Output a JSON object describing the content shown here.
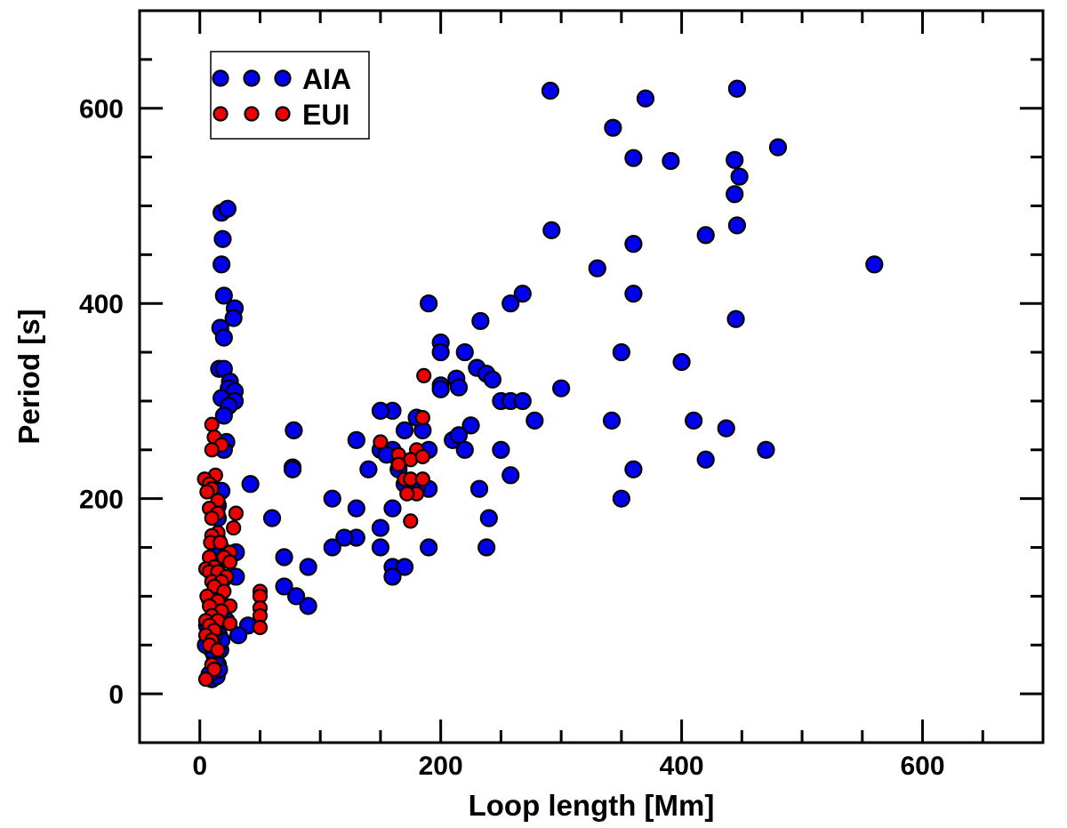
{
  "chart_data": {
    "type": "scatter",
    "title": "",
    "xlabel": "Loop length [Mm]",
    "ylabel": "Period [s]",
    "xlim": [
      -50,
      700
    ],
    "ylim": [
      -50,
      700
    ],
    "xticks": [
      0,
      200,
      400,
      600
    ],
    "yticks": [
      0,
      200,
      400,
      600
    ],
    "xtick_labels": [
      "0",
      "200",
      "400",
      "600"
    ],
    "ytick_labels": [
      "0",
      "200",
      "400",
      "600"
    ],
    "minor_tick_step": 50,
    "grid": false,
    "legend_position": "top-left",
    "series": [
      {
        "name": "AIA",
        "color": "#0000ee",
        "marker": "circle",
        "points": [
          [
            291,
            618
          ],
          [
            370,
            610
          ],
          [
            446,
            620
          ],
          [
            343,
            580
          ],
          [
            480,
            560
          ],
          [
            360,
            549
          ],
          [
            391,
            546
          ],
          [
            444,
            547
          ],
          [
            448,
            530
          ],
          [
            444,
            512
          ],
          [
            292,
            475
          ],
          [
            360,
            461
          ],
          [
            420,
            470
          ],
          [
            446,
            480
          ],
          [
            560,
            440
          ],
          [
            330,
            436
          ],
          [
            268,
            410
          ],
          [
            360,
            410
          ],
          [
            258,
            400
          ],
          [
            190,
            400
          ],
          [
            233,
            382
          ],
          [
            445,
            384
          ],
          [
            350,
            350
          ],
          [
            400,
            340
          ],
          [
            200,
            360
          ],
          [
            200,
            350
          ],
          [
            220,
            350
          ],
          [
            230,
            334
          ],
          [
            238,
            328
          ],
          [
            243,
            322
          ],
          [
            213,
            323
          ],
          [
            200,
            316
          ],
          [
            200,
            312
          ],
          [
            215,
            314
          ],
          [
            250,
            300
          ],
          [
            258,
            300
          ],
          [
            268,
            300
          ],
          [
            278,
            280
          ],
          [
            300,
            313
          ],
          [
            342,
            280
          ],
          [
            410,
            280
          ],
          [
            437,
            272
          ],
          [
            360,
            230
          ],
          [
            420,
            240
          ],
          [
            470,
            250
          ],
          [
            350,
            200
          ],
          [
            258,
            224
          ],
          [
            232,
            210
          ],
          [
            240,
            180
          ],
          [
            238,
            150
          ],
          [
            250,
            250
          ],
          [
            225,
            275
          ],
          [
            210,
            260
          ],
          [
            215,
            265
          ],
          [
            220,
            250
          ],
          [
            190,
            150
          ],
          [
            190,
            210
          ],
          [
            185,
            270
          ],
          [
            190,
            250
          ],
          [
            180,
            283
          ],
          [
            160,
            290
          ],
          [
            150,
            290
          ],
          [
            170,
            270
          ],
          [
            165,
            240
          ],
          [
            160,
            250
          ],
          [
            150,
            250
          ],
          [
            155,
            245
          ],
          [
            165,
            230
          ],
          [
            180,
            210
          ],
          [
            170,
            215
          ],
          [
            160,
            190
          ],
          [
            150,
            170
          ],
          [
            150,
            150
          ],
          [
            160,
            130
          ],
          [
            170,
            130
          ],
          [
            160,
            120
          ],
          [
            140,
            230
          ],
          [
            130,
            260
          ],
          [
            130,
            190
          ],
          [
            130,
            160
          ],
          [
            120,
            160
          ],
          [
            110,
            150
          ],
          [
            110,
            200
          ],
          [
            90,
            130
          ],
          [
            90,
            90
          ],
          [
            80,
            100
          ],
          [
            70,
            110
          ],
          [
            70,
            140
          ],
          [
            60,
            180
          ],
          [
            78,
            270
          ],
          [
            77,
            232
          ],
          [
            77,
            230
          ],
          [
            42,
            215
          ],
          [
            40,
            70
          ],
          [
            30,
            120
          ],
          [
            30,
            145
          ],
          [
            32,
            60
          ],
          [
            18,
            493
          ],
          [
            23,
            497
          ],
          [
            19,
            466
          ],
          [
            18,
            440
          ],
          [
            20,
            408
          ],
          [
            29,
            395
          ],
          [
            28,
            385
          ],
          [
            17,
            375
          ],
          [
            20,
            365
          ],
          [
            16,
            333
          ],
          [
            20,
            333
          ],
          [
            25,
            320
          ],
          [
            24,
            313
          ],
          [
            29,
            310
          ],
          [
            18,
            303
          ],
          [
            29,
            300
          ],
          [
            24,
            295
          ],
          [
            20,
            285
          ],
          [
            22,
            258
          ],
          [
            20,
            250
          ],
          [
            16,
            208
          ],
          [
            18,
            208
          ],
          [
            15,
            193
          ],
          [
            15,
            180
          ],
          [
            14,
            160
          ],
          [
            17,
            150
          ],
          [
            14,
            130
          ],
          [
            16,
            120
          ],
          [
            12,
            100
          ],
          [
            14,
            110
          ],
          [
            12,
            80
          ],
          [
            15,
            90
          ],
          [
            14,
            70
          ],
          [
            16,
            60
          ],
          [
            15,
            50
          ],
          [
            12,
            40
          ],
          [
            15,
            30
          ],
          [
            12,
            20
          ],
          [
            10,
            15
          ],
          [
            14,
            18
          ],
          [
            16,
            25
          ],
          [
            13,
            35
          ],
          [
            17,
            45
          ],
          [
            18,
            55
          ],
          [
            10,
            45
          ],
          [
            8,
            20
          ],
          [
            12,
            60
          ],
          [
            14,
            125
          ],
          [
            18,
            115
          ],
          [
            20,
            90
          ],
          [
            22,
            75
          ],
          [
            16,
            95
          ],
          [
            6,
            70
          ],
          [
            5,
            50
          ],
          [
            8,
            98
          ]
        ]
      },
      {
        "name": "EUI",
        "color": "#ee0000",
        "marker": "circle",
        "points": [
          [
            186,
            326
          ],
          [
            185,
            283
          ],
          [
            180,
            250
          ],
          [
            150,
            258
          ],
          [
            165,
            245
          ],
          [
            175,
            240
          ],
          [
            165,
            235
          ],
          [
            170,
            220
          ],
          [
            175,
            220
          ],
          [
            185,
            243
          ],
          [
            185,
            220
          ],
          [
            180,
            205
          ],
          [
            172,
            205
          ],
          [
            175,
            177
          ],
          [
            10,
            276
          ],
          [
            12,
            263
          ],
          [
            18,
            255
          ],
          [
            10,
            250
          ],
          [
            13,
            224
          ],
          [
            4,
            220
          ],
          [
            8,
            215
          ],
          [
            10,
            210
          ],
          [
            6,
            207
          ],
          [
            15,
            198
          ],
          [
            8,
            190
          ],
          [
            15,
            185
          ],
          [
            30,
            185
          ],
          [
            10,
            180
          ],
          [
            28,
            170
          ],
          [
            15,
            165
          ],
          [
            10,
            162
          ],
          [
            9,
            155
          ],
          [
            17,
            155
          ],
          [
            25,
            145
          ],
          [
            20,
            140
          ],
          [
            8,
            140
          ],
          [
            25,
            135
          ],
          [
            12,
            130
          ],
          [
            5,
            128
          ],
          [
            8,
            125
          ],
          [
            15,
            125
          ],
          [
            22,
            120
          ],
          [
            10,
            115
          ],
          [
            18,
            115
          ],
          [
            12,
            110
          ],
          [
            20,
            105
          ],
          [
            6,
            100
          ],
          [
            50,
            105
          ],
          [
            50,
            100
          ],
          [
            15,
            95
          ],
          [
            8,
            90
          ],
          [
            25,
            90
          ],
          [
            50,
            88
          ],
          [
            18,
            85
          ],
          [
            10,
            80
          ],
          [
            5,
            75
          ],
          [
            15,
            75
          ],
          [
            50,
            80
          ],
          [
            25,
            72
          ],
          [
            8,
            70
          ],
          [
            50,
            68
          ],
          [
            12,
            65
          ],
          [
            5,
            60
          ],
          [
            10,
            55
          ],
          [
            8,
            50
          ],
          [
            15,
            45
          ],
          [
            10,
            30
          ],
          [
            12,
            25
          ],
          [
            5,
            15
          ]
        ]
      }
    ]
  },
  "legend": {
    "items": [
      {
        "label": "AIA",
        "color": "#0000ee"
      },
      {
        "label": "EUI",
        "color": "#ee0000"
      }
    ]
  }
}
